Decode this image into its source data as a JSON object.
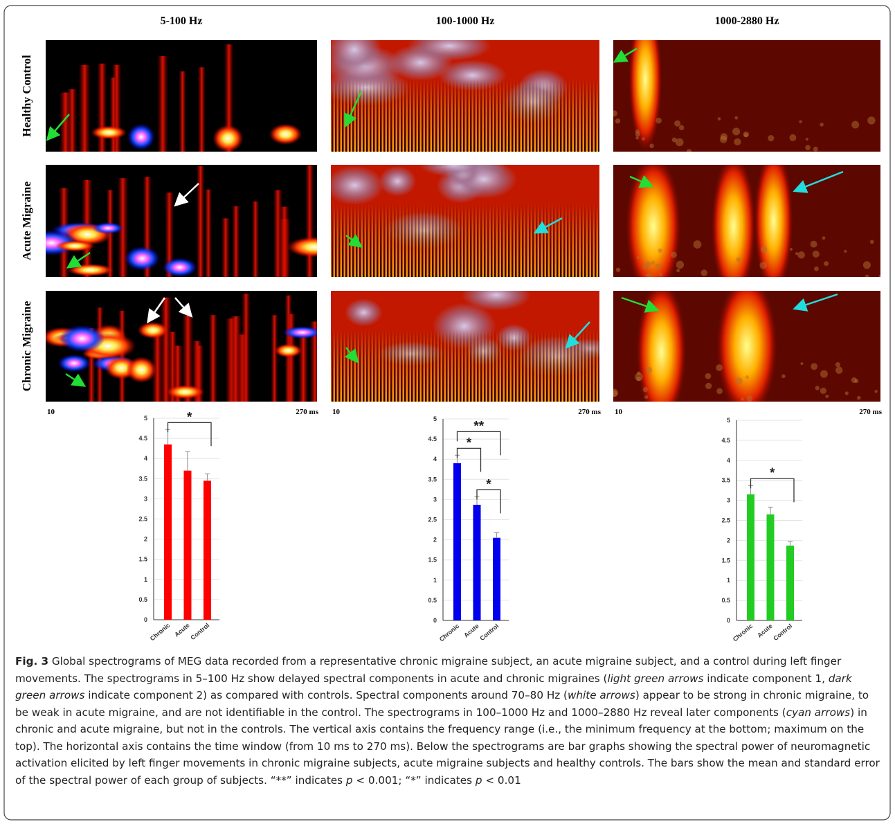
{
  "figure": {
    "columns": [
      {
        "title": "5-100 Hz",
        "start": "10",
        "end": "270 ms"
      },
      {
        "title": "100-1000 Hz",
        "start": "10",
        "end": "270 ms"
      },
      {
        "title": "1000-2880 Hz",
        "start": "10",
        "end": "270 ms"
      }
    ],
    "rows": [
      "Healthy Control",
      "Acute Migraine",
      "Chronic Migraine"
    ]
  },
  "chart_data": [
    {
      "type": "bar",
      "categories": [
        "Chronic",
        "Acute",
        "Control"
      ],
      "values": [
        4.35,
        3.7,
        3.45
      ],
      "errors": [
        0.37,
        0.47,
        0.17
      ],
      "color": "#ff0000",
      "ylim": [
        0,
        5
      ],
      "yticks": [
        0,
        0.5,
        1,
        1.5,
        2,
        2.5,
        3,
        3.5,
        4,
        4.5,
        5
      ],
      "grid": true,
      "annotations": [
        {
          "text": "*",
          "between": [
            "Chronic",
            "Control"
          ]
        }
      ]
    },
    {
      "type": "bar",
      "categories": [
        "Chronic",
        "Acute",
        "Control"
      ],
      "values": [
        3.9,
        2.87,
        2.05
      ],
      "errors": [
        0.2,
        0.2,
        0.13
      ],
      "color": "#0000ee",
      "ylim": [
        0,
        5
      ],
      "yticks": [
        0,
        0.5,
        1,
        1.5,
        2,
        2.5,
        3,
        3.5,
        4,
        4.5,
        5
      ],
      "grid": true,
      "annotations": [
        {
          "text": "*",
          "between": [
            "Acute",
            "Control"
          ]
        },
        {
          "text": "*",
          "between": [
            "Chronic",
            "Acute"
          ]
        },
        {
          "text": "**",
          "between": [
            "Chronic",
            "Control"
          ]
        }
      ]
    },
    {
      "type": "bar",
      "categories": [
        "Chronic",
        "Acute",
        "Control"
      ],
      "values": [
        3.15,
        2.65,
        1.87
      ],
      "errors": [
        0.22,
        0.18,
        0.1
      ],
      "color": "#22cc22",
      "ylim": [
        0,
        5
      ],
      "yticks": [
        0,
        0.5,
        1,
        1.5,
        2,
        2.5,
        3,
        3.5,
        4,
        4.5,
        5
      ],
      "grid": true,
      "annotations": [
        {
          "text": "*",
          "between": [
            "Chronic",
            "Control"
          ]
        }
      ]
    }
  ],
  "caption": {
    "label": "Fig. 3",
    "parts": [
      " Global spectrograms of MEG data recorded from a representative chronic migraine subject, an acute migraine subject, and a control during left finger movements. The spectrograms in 5–100 Hz show delayed spectral components in acute and chronic migraines (",
      "light green arrows",
      " indicate component 1, ",
      "dark green arrows",
      " indicate component 2) as compared with controls. Spectral components around 70–80 Hz (",
      "white arrows",
      ") appear to be strong in chronic migraine, to be weak in acute migraine, and are not identifiable in the control. The spectrograms in 100–1000 Hz and 1000–2880 Hz reveal later components (",
      "cyan arrows",
      ") in chronic and acute migraine, but not in the controls. The vertical axis contains the frequency range (i.e., the minimum frequency at the bottom; maximum on the top). The horizontal axis contains the time window (from 10 ms to 270 ms). Below the spectrograms are bar graphs showing the spectral power of neuromagnetic activation elicited by left finger movements in chronic migraine subjects, acute migraine subjects and healthy controls. The bars show the mean and standard error of the spectral power of each group of subjects. “**” indicates ",
      "p",
      " < 0.001; “*” indicates ",
      "p",
      " < 0.01"
    ]
  }
}
